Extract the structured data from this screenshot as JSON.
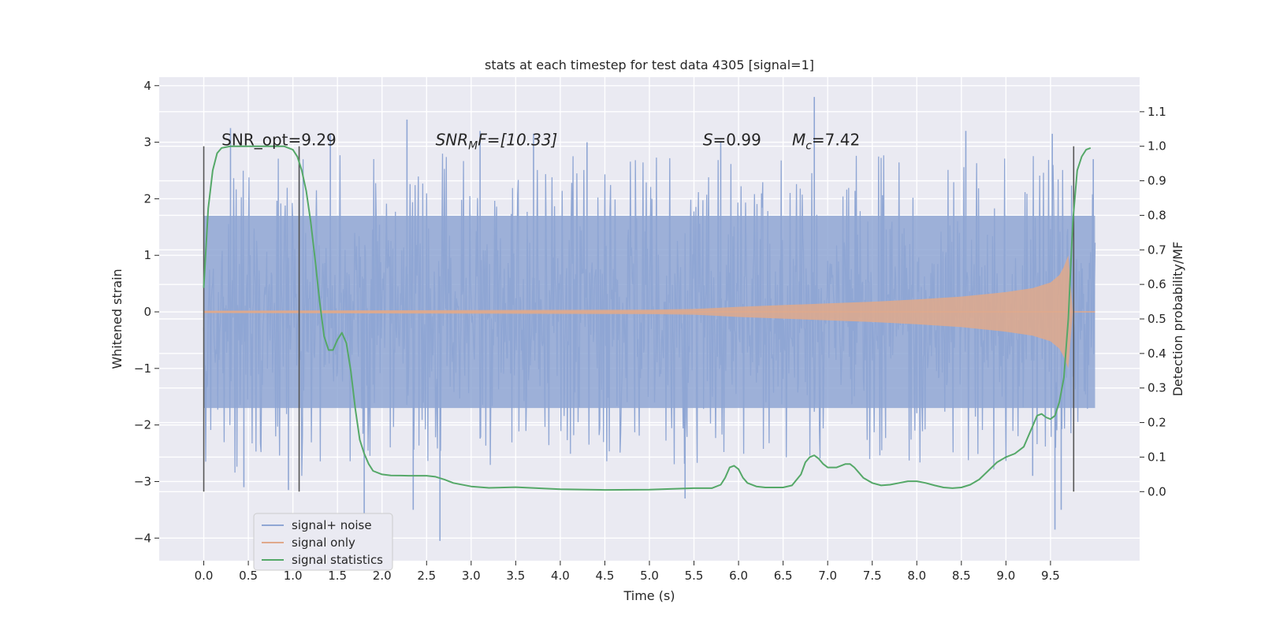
{
  "chart_data": {
    "type": "line",
    "title": "stats at each timestep for test data 4305 [signal=1]",
    "xlabel": "Time (s)",
    "ylabel": "Whitened strain",
    "ylabel_right": "Detection probability/MF",
    "xlim": [
      -0.5,
      10.5
    ],
    "ylim": [
      -4.4,
      4.15
    ],
    "ylim_right": [
      -0.2,
      1.2
    ],
    "x_ticks": [
      "0.0",
      "0.5",
      "1.0",
      "1.5",
      "2.0",
      "2.5",
      "3.0",
      "3.5",
      "4.0",
      "4.5",
      "5.0",
      "5.5",
      "6.0",
      "6.5",
      "7.0",
      "7.5",
      "8.0",
      "8.5",
      "9.0",
      "9.5"
    ],
    "y_ticks": [
      "−4",
      "−3",
      "−2",
      "−1",
      "0",
      "1",
      "2",
      "3",
      "4"
    ],
    "y_ticks_right": [
      "0.0",
      "0.1",
      "0.2",
      "0.3",
      "0.4",
      "0.5",
      "0.6",
      "0.7",
      "0.8",
      "0.9",
      "1.0",
      "1.1"
    ],
    "grid": true,
    "legend_placement": "lower-left",
    "annotations": {
      "snr_opt": "SNR_opt=9.29",
      "snr_mf_sym": "SNR",
      "snr_mf_sub": "M",
      "snr_mf_rest": "F=[10.33]",
      "s_sym": "S",
      "s_rest": "=0.99",
      "mc_sym": "M",
      "mc_sub": "c",
      "mc_rest": "=7.42"
    },
    "vertical_lines_x": [
      0.0,
      1.07,
      9.76
    ],
    "series": [
      {
        "name": "signal+ noise",
        "color": "#8fa6d4",
        "axis": "left",
        "x_range": [
          0.0,
          10.0
        ],
        "envelope_typical": 1.7,
        "extreme_peaks": [
          [
            0.3,
            3.25
          ],
          [
            0.45,
            -3.1
          ],
          [
            0.95,
            -3.15
          ],
          [
            1.42,
            3.15
          ],
          [
            1.8,
            -3.7
          ],
          [
            2.28,
            3.4
          ],
          [
            2.35,
            -3.5
          ],
          [
            2.65,
            -4.05
          ],
          [
            3.1,
            3.2
          ],
          [
            3.7,
            3.15
          ],
          [
            4.3,
            3.0
          ],
          [
            5.4,
            -3.3
          ],
          [
            5.8,
            3.0
          ],
          [
            6.85,
            3.8
          ],
          [
            8.55,
            3.2
          ],
          [
            9.3,
            -2.9
          ],
          [
            9.55,
            -3.85
          ],
          [
            9.52,
            3.15
          ],
          [
            9.62,
            -3.5
          ],
          [
            9.98,
            2.7
          ]
        ]
      },
      {
        "name": "signal only",
        "color": "#e0a98b",
        "axis": "left",
        "x": [
          0.0,
          5.0,
          5.5,
          6.0,
          6.5,
          7.0,
          7.5,
          8.0,
          8.5,
          9.0,
          9.3,
          9.5,
          9.6,
          9.65,
          9.7,
          9.75,
          10.0
        ],
        "amplitude": [
          0.02,
          0.04,
          0.05,
          0.09,
          0.12,
          0.15,
          0.18,
          0.22,
          0.27,
          0.35,
          0.42,
          0.52,
          0.65,
          0.8,
          1.0,
          0.0,
          0.0
        ]
      },
      {
        "name": "signal statistics",
        "color": "#55a868",
        "axis": "right",
        "x": [
          0.0,
          0.05,
          0.1,
          0.15,
          0.2,
          0.3,
          0.5,
          0.7,
          0.9,
          1.0,
          1.05,
          1.1,
          1.15,
          1.2,
          1.25,
          1.3,
          1.35,
          1.4,
          1.45,
          1.5,
          1.55,
          1.6,
          1.65,
          1.7,
          1.75,
          1.8,
          1.85,
          1.9,
          2.0,
          2.1,
          2.3,
          2.5,
          2.6,
          2.7,
          2.8,
          3.0,
          3.2,
          3.5,
          4.0,
          4.5,
          5.0,
          5.5,
          5.7,
          5.8,
          5.85,
          5.9,
          5.95,
          6.0,
          6.05,
          6.1,
          6.2,
          6.3,
          6.5,
          6.6,
          6.7,
          6.75,
          6.8,
          6.85,
          6.9,
          6.95,
          7.0,
          7.1,
          7.2,
          7.25,
          7.3,
          7.35,
          7.4,
          7.5,
          7.6,
          7.7,
          7.8,
          7.9,
          8.0,
          8.1,
          8.2,
          8.3,
          8.4,
          8.5,
          8.6,
          8.7,
          8.8,
          8.9,
          9.0,
          9.1,
          9.2,
          9.3,
          9.35,
          9.4,
          9.45,
          9.5,
          9.55,
          9.6,
          9.65,
          9.7,
          9.75,
          9.8,
          9.85,
          9.9,
          9.95
        ],
        "y": [
          0.59,
          0.82,
          0.93,
          0.98,
          0.995,
          1.0,
          1.0,
          1.0,
          1.0,
          0.99,
          0.97,
          0.93,
          0.87,
          0.78,
          0.67,
          0.55,
          0.45,
          0.41,
          0.41,
          0.44,
          0.46,
          0.43,
          0.35,
          0.24,
          0.15,
          0.11,
          0.08,
          0.06,
          0.05,
          0.047,
          0.046,
          0.046,
          0.043,
          0.035,
          0.025,
          0.015,
          0.011,
          0.013,
          0.007,
          0.005,
          0.006,
          0.01,
          0.01,
          0.02,
          0.04,
          0.07,
          0.075,
          0.065,
          0.04,
          0.025,
          0.015,
          0.012,
          0.012,
          0.018,
          0.05,
          0.085,
          0.1,
          0.105,
          0.095,
          0.08,
          0.07,
          0.07,
          0.08,
          0.08,
          0.07,
          0.055,
          0.04,
          0.025,
          0.018,
          0.02,
          0.025,
          0.03,
          0.03,
          0.025,
          0.018,
          0.012,
          0.01,
          0.012,
          0.02,
          0.035,
          0.06,
          0.085,
          0.1,
          0.11,
          0.13,
          0.19,
          0.22,
          0.225,
          0.215,
          0.21,
          0.22,
          0.26,
          0.33,
          0.5,
          0.78,
          0.93,
          0.97,
          0.99,
          0.995
        ]
      }
    ]
  }
}
